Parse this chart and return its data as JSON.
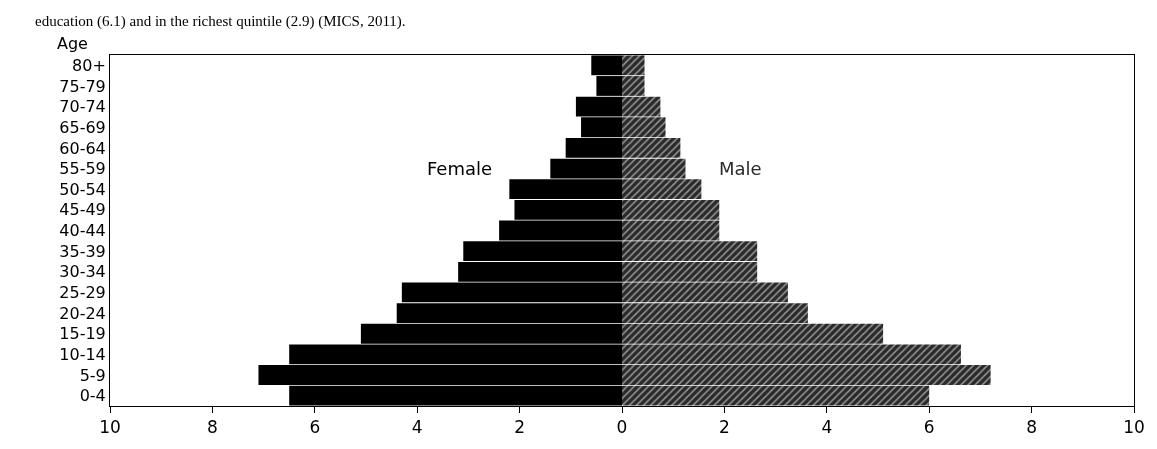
{
  "chart_data": {
    "type": "bar",
    "orientation": "horizontal",
    "ylabel": "Age",
    "annotations": [
      "education (6.1) and in the richest quintile (2.9) (MICS, 2011)."
    ],
    "categories": [
      "80+",
      "75-79",
      "70-74",
      "65-69",
      "60-64",
      "55-59",
      "50-54",
      "45-49",
      "40-44",
      "35-39",
      "30-34",
      "25-29",
      "20-24",
      "15-19",
      "10-14",
      "5-9",
      "0-4"
    ],
    "series": [
      {
        "name": "Female",
        "color": "#000000",
        "values": [
          -0.6,
          -0.5,
          -0.9,
          -0.8,
          -1.1,
          -1.4,
          -2.2,
          -2.1,
          -2.4,
          -3.1,
          -3.2,
          -4.3,
          -4.4,
          -5.1,
          -6.5,
          -7.1,
          -6.5
        ]
      },
      {
        "name": "Male",
        "color": "#2a2a2a",
        "values": [
          0.44,
          0.44,
          0.75,
          0.85,
          1.14,
          1.24,
          1.55,
          1.9,
          1.9,
          2.64,
          2.64,
          3.24,
          3.63,
          5.1,
          6.62,
          7.2,
          6.0
        ]
      }
    ],
    "xlim": [
      -10,
      10
    ],
    "xticks": [
      {
        "value": -10,
        "label": "10"
      },
      {
        "value": -8,
        "label": "8"
      },
      {
        "value": -6,
        "label": "6"
      },
      {
        "value": -4,
        "label": "4"
      },
      {
        "value": -2,
        "label": "2"
      },
      0,
      2,
      4,
      6,
      8,
      10
    ],
    "stacked": true,
    "legend": false
  }
}
